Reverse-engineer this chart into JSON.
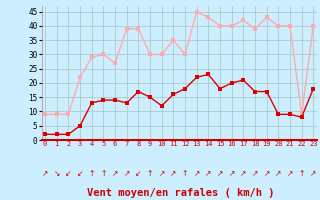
{
  "x": [
    0,
    1,
    2,
    3,
    4,
    5,
    6,
    7,
    8,
    9,
    10,
    11,
    12,
    13,
    14,
    15,
    16,
    17,
    18,
    19,
    20,
    21,
    22,
    23
  ],
  "vent_moyen": [
    2,
    2,
    2,
    5,
    13,
    14,
    14,
    13,
    17,
    15,
    12,
    16,
    18,
    22,
    23,
    18,
    20,
    21,
    17,
    17,
    9,
    9,
    8,
    18
  ],
  "rafales": [
    9,
    9,
    9,
    22,
    29,
    30,
    27,
    39,
    39,
    30,
    30,
    35,
    30,
    45,
    43,
    40,
    40,
    42,
    39,
    43,
    40,
    40,
    9,
    40
  ],
  "bg_color": "#cceeff",
  "line_color_moyen": "#dd0000",
  "line_color_rafales": "#ffaaaa",
  "grid_color": "#aacccc",
  "xlabel": "Vent moyen/en rafales ( km/h )",
  "ylabel_ticks": [
    0,
    5,
    10,
    15,
    20,
    25,
    30,
    35,
    40,
    45
  ],
  "ylim": [
    0,
    47
  ],
  "xlim": [
    -0.3,
    23.3
  ],
  "marker": "s",
  "markersize": 2.5,
  "linewidth": 1.0,
  "arrow_chars": [
    "↗",
    "↘",
    "↙",
    "↙",
    "↑",
    "↑",
    "↗",
    "↗",
    "↙",
    "↑",
    "↗",
    "↗",
    "↑",
    "↗",
    "↗",
    "↗",
    "↗",
    "↗",
    "↗",
    "↗",
    "↗",
    "↗",
    "↑",
    "↗"
  ]
}
